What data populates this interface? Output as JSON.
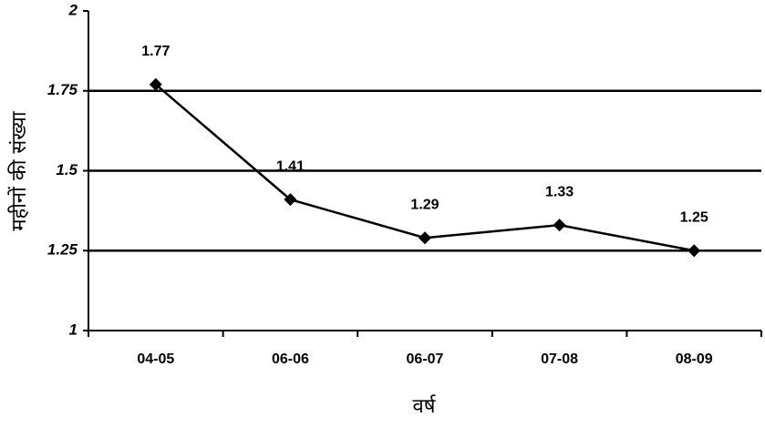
{
  "chart_data": {
    "type": "line",
    "categories": [
      "04-05",
      "06-06",
      "06-07",
      "07-08",
      "08-09"
    ],
    "series": [
      {
        "color": "#000000",
        "values": [
          1.77,
          1.41,
          1.29,
          1.33,
          1.25
        ]
      }
    ],
    "ylim": [
      1,
      2
    ],
    "yticks": [
      1,
      1.25,
      1.5,
      1.75,
      2
    ],
    "grid": true,
    "xlabel": "वर्ष",
    "ylabel": "महीनों की संख्या"
  }
}
